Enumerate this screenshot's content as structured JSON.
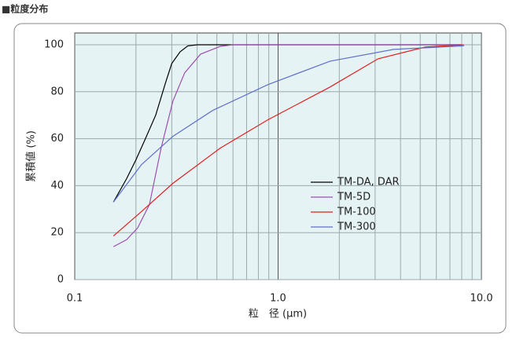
{
  "page_title": "■粒度分布",
  "chart_data": {
    "type": "line",
    "xlabel": "粒　径 (μm)",
    "ylabel": "累積値 (%)",
    "xscale": "log",
    "xlim": [
      0.1,
      10
    ],
    "ylim": [
      0,
      105
    ],
    "xticks": [
      0.1,
      {
        "value": 1,
        "label": "1.0"
      },
      {
        "value": 10,
        "label": "10.0"
      }
    ],
    "xminorticks": [
      0.2,
      0.3,
      0.4,
      0.5,
      0.6,
      0.7,
      0.8,
      0.9,
      2,
      3,
      4,
      5,
      6,
      7,
      8,
      9
    ],
    "yticks": [
      0,
      20,
      40,
      60,
      80,
      100
    ],
    "grid": true,
    "legend": "center-right",
    "series": [
      {
        "name": "TM-DA, DAR",
        "color": "#000000",
        "x": [
          0.155,
          0.18,
          0.2,
          0.22,
          0.25,
          0.28,
          0.3,
          0.33,
          0.36,
          0.4,
          0.6,
          1,
          3,
          8
        ],
        "values": [
          33,
          43,
          51,
          59,
          70,
          84,
          92,
          97,
          99.5,
          100,
          100,
          100,
          100,
          100
        ]
      },
      {
        "name": "TM-5D",
        "color": "#9b4fb0",
        "x": [
          0.155,
          0.18,
          0.204,
          0.233,
          0.266,
          0.304,
          0.347,
          0.416,
          0.52,
          0.6,
          1,
          3,
          8
        ],
        "values": [
          14,
          17,
          22,
          32,
          56,
          76,
          88,
          96,
          99.3,
          100,
          100,
          100,
          100
        ]
      },
      {
        "name": "TM-100",
        "color": "#e02020",
        "x": [
          0.155,
          0.213,
          0.304,
          0.52,
          0.89,
          1.8,
          3.1,
          5.3,
          8.2
        ],
        "values": [
          18.6,
          29,
          41,
          56,
          68,
          82,
          94,
          99,
          100
        ]
      },
      {
        "name": "TM-300",
        "color": "#6070c8",
        "x": [
          0.155,
          0.213,
          0.304,
          0.476,
          0.89,
          1.8,
          3.7,
          8.2
        ],
        "values": [
          33,
          49,
          61,
          72,
          83,
          93,
          98,
          99.5
        ]
      }
    ]
  }
}
